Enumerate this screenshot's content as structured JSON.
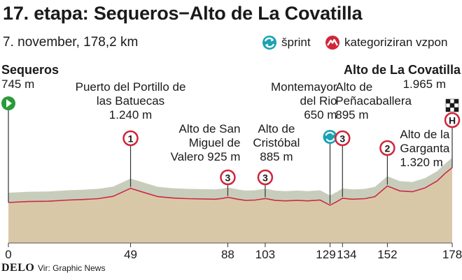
{
  "title": "17. etapa: Sequeros−Alto de La Covatilla",
  "subtitle": "7. november, 178,2 km",
  "legend": [
    {
      "label": "šprint",
      "icon": "sprint-icon",
      "color": "#1aa3b3"
    },
    {
      "label": "kategoriziran vzpon",
      "icon": "climb-icon",
      "color": "#d0263a"
    }
  ],
  "colors": {
    "profile_fill": "#d9c8a8",
    "profile_top": "#c8cdbb",
    "profile_line": "#cc2a43",
    "marker_red": "#d0263a",
    "sprint_teal": "#1aa3b3",
    "start_green": "#2a9a3a"
  },
  "chart_data": {
    "type": "area",
    "x_unit": "km",
    "xlim": [
      0,
      178
    ],
    "x_ticks": [
      0,
      49,
      88,
      103,
      129,
      134,
      152,
      178
    ],
    "profile": [
      [
        0,
        745
      ],
      [
        8,
        780
      ],
      [
        16,
        790
      ],
      [
        24,
        830
      ],
      [
        30,
        850
      ],
      [
        36,
        880
      ],
      [
        42,
        960
      ],
      [
        49,
        1240
      ],
      [
        55,
        1080
      ],
      [
        60,
        950
      ],
      [
        66,
        900
      ],
      [
        72,
        880
      ],
      [
        78,
        870
      ],
      [
        83,
        860
      ],
      [
        86,
        890
      ],
      [
        88,
        925
      ],
      [
        92,
        860
      ],
      [
        95,
        820
      ],
      [
        99,
        830
      ],
      [
        103,
        885
      ],
      [
        107,
        820
      ],
      [
        111,
        800
      ],
      [
        116,
        820
      ],
      [
        120,
        800
      ],
      [
        125,
        830
      ],
      [
        129,
        650
      ],
      [
        132,
        790
      ],
      [
        134,
        895
      ],
      [
        138,
        860
      ],
      [
        143,
        880
      ],
      [
        147,
        950
      ],
      [
        152,
        1320
      ],
      [
        157,
        1150
      ],
      [
        162,
        1120
      ],
      [
        167,
        1250
      ],
      [
        172,
        1500
      ],
      [
        175,
        1750
      ],
      [
        178,
        1965
      ]
    ],
    "start": {
      "name": "Sequeros",
      "elevation_label": "745 m"
    },
    "finish": {
      "name": "Alto de La Covatilla",
      "elevation_label": "1.965 m",
      "category": "H"
    },
    "points": [
      {
        "km": 49,
        "type": "climb",
        "category": "1",
        "lines": [
          "Puerto del Portillo de",
          "las Batuecas",
          "1.240 m"
        ]
      },
      {
        "km": 88,
        "type": "climb",
        "category": "3",
        "lines": [
          "Alto de San",
          "Miguel de",
          "Valero 925 m"
        ]
      },
      {
        "km": 103,
        "type": "climb",
        "category": "3",
        "lines": [
          "Alto de",
          "Cristóbal",
          "885 m"
        ]
      },
      {
        "km": 129,
        "type": "sprint",
        "category": "",
        "lines": [
          "Montemayor",
          "del Rio",
          "650 m"
        ]
      },
      {
        "km": 134,
        "type": "climb",
        "category": "3",
        "lines": [
          "Alto de",
          "Peñacaballera",
          "895 m"
        ]
      },
      {
        "km": 152,
        "type": "climb",
        "category": "2",
        "lines": [
          "Alto de la",
          "Garganta",
          "1.320 m"
        ]
      }
    ]
  },
  "footer": {
    "logo": "DELO",
    "source": "Vir: Graphic News"
  }
}
